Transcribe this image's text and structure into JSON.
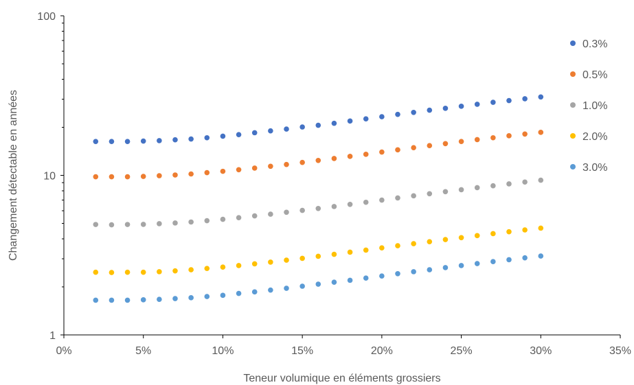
{
  "chart_data": {
    "type": "scatter",
    "title": "",
    "xlabel": "Teneur volumique en éléments grossiers",
    "ylabel": "Changement détectable en années",
    "xlim": [
      0,
      0.35
    ],
    "ylim": [
      1,
      100
    ],
    "yscale": "log",
    "grid": false,
    "legend_position": "right",
    "x_ticks": [
      {
        "value": 0,
        "label": "0%"
      },
      {
        "value": 0.05,
        "label": "5%"
      },
      {
        "value": 0.1,
        "label": "10%"
      },
      {
        "value": 0.15,
        "label": "15%"
      },
      {
        "value": 0.2,
        "label": "20%"
      },
      {
        "value": 0.25,
        "label": "25%"
      },
      {
        "value": 0.3,
        "label": "30%"
      },
      {
        "value": 0.35,
        "label": "35%"
      }
    ],
    "y_ticks": [
      {
        "value": 1,
        "label": "1"
      },
      {
        "value": 10,
        "label": "10"
      },
      {
        "value": 100,
        "label": "100"
      }
    ],
    "x": [
      0.02,
      0.03,
      0.04,
      0.05,
      0.06,
      0.07,
      0.08,
      0.09,
      0.1,
      0.11,
      0.12,
      0.13,
      0.14,
      0.15,
      0.16,
      0.17,
      0.18,
      0.19,
      0.2,
      0.21,
      0.22,
      0.23,
      0.24,
      0.25,
      0.26,
      0.27,
      0.28,
      0.29,
      0.3
    ],
    "series": [
      {
        "name": "0.3%",
        "color": "#4472C4",
        "values": [
          16.3,
          16.3,
          16.3,
          16.4,
          16.5,
          16.7,
          16.9,
          17.2,
          17.6,
          18.0,
          18.5,
          19.0,
          19.5,
          20.1,
          20.6,
          21.2,
          21.9,
          22.6,
          23.3,
          24.1,
          24.8,
          25.6,
          26.3,
          27.1,
          27.9,
          28.7,
          29.4,
          30.2,
          31.0
        ]
      },
      {
        "name": "0.5%",
        "color": "#ED7D31",
        "values": [
          9.8,
          9.8,
          9.8,
          9.85,
          9.95,
          10.05,
          10.2,
          10.4,
          10.6,
          10.85,
          11.1,
          11.4,
          11.7,
          12.05,
          12.4,
          12.75,
          13.15,
          13.55,
          14.0,
          14.45,
          14.9,
          15.35,
          15.8,
          16.3,
          16.75,
          17.2,
          17.7,
          18.15,
          18.6
        ]
      },
      {
        "name": "1.0%",
        "color": "#A5A5A5",
        "values": [
          4.92,
          4.9,
          4.92,
          4.93,
          4.98,
          5.03,
          5.1,
          5.2,
          5.3,
          5.43,
          5.57,
          5.71,
          5.87,
          6.03,
          6.2,
          6.38,
          6.58,
          6.78,
          7.0,
          7.22,
          7.44,
          7.67,
          7.9,
          8.13,
          8.37,
          8.6,
          8.84,
          9.08,
          9.32
        ]
      },
      {
        "name": "2.0%",
        "color": "#FFC000",
        "values": [
          2.47,
          2.46,
          2.47,
          2.47,
          2.49,
          2.52,
          2.56,
          2.61,
          2.66,
          2.72,
          2.79,
          2.86,
          2.94,
          3.02,
          3.11,
          3.2,
          3.3,
          3.4,
          3.51,
          3.62,
          3.73,
          3.84,
          3.96,
          4.07,
          4.19,
          4.31,
          4.43,
          4.55,
          4.67
        ]
      },
      {
        "name": "3.0%",
        "color": "#5B9BD5",
        "values": [
          1.65,
          1.65,
          1.65,
          1.66,
          1.67,
          1.69,
          1.71,
          1.74,
          1.77,
          1.82,
          1.86,
          1.91,
          1.96,
          2.02,
          2.08,
          2.14,
          2.2,
          2.27,
          2.34,
          2.42,
          2.49,
          2.56,
          2.64,
          2.72,
          2.8,
          2.88,
          2.96,
          3.04,
          3.12
        ]
      }
    ]
  }
}
